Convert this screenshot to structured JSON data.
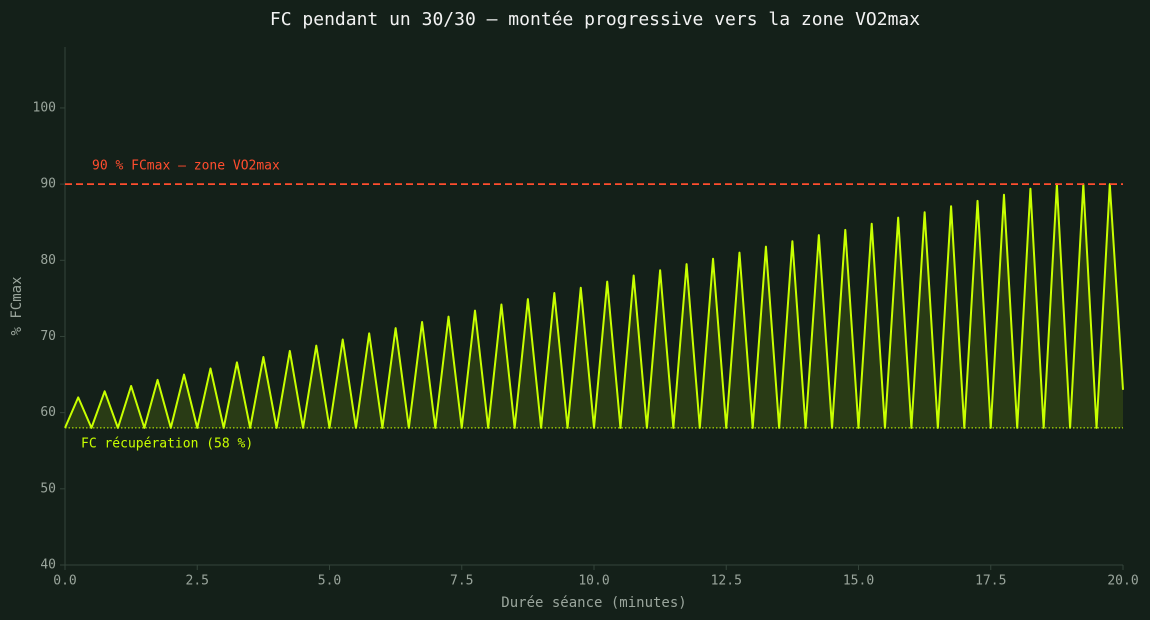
{
  "chart_data": {
    "type": "line",
    "title": "FC pendant un 30/30 — montée progressive vers la zone VO2max",
    "x_label": "Durée séance (minutes)",
    "y_label": "% FCmax",
    "x": [
      0,
      0.25,
      0.5,
      0.75,
      1,
      1.25,
      1.5,
      1.75,
      2,
      2.25,
      2.5,
      2.75,
      3,
      3.25,
      3.5,
      3.75,
      4,
      4.25,
      4.5,
      4.75,
      5,
      5.25,
      5.5,
      5.75,
      6,
      6.25,
      6.5,
      6.75,
      7,
      7.25,
      7.5,
      7.75,
      8,
      8.25,
      8.5,
      8.75,
      9,
      9.25,
      9.5,
      9.75,
      10,
      10.25,
      10.5,
      10.75,
      11,
      11.25,
      11.5,
      11.75,
      12,
      12.25,
      12.5,
      12.75,
      13,
      13.25,
      13.5,
      13.75,
      14,
      14.25,
      14.5,
      14.75,
      15,
      15.25,
      15.5,
      15.75,
      16,
      16.25,
      16.5,
      16.75,
      17,
      17.25,
      17.5,
      17.75,
      18,
      18.25,
      18.5,
      18.75,
      19,
      19.25,
      19.5,
      19.75,
      20
    ],
    "series": [
      {
        "name": "FC",
        "color": "#c8ff00",
        "values": [
          58,
          62.0,
          58,
          62.8,
          58,
          63.5,
          58,
          64.3,
          58,
          65.0,
          58,
          65.8,
          58,
          66.6,
          58,
          67.3,
          58,
          68.1,
          58,
          68.8,
          58,
          69.6,
          58,
          70.4,
          58,
          71.1,
          58,
          71.9,
          58,
          72.6,
          58,
          73.4,
          58,
          74.2,
          58,
          74.9,
          58,
          75.7,
          58,
          76.4,
          58,
          77.2,
          58,
          78.0,
          58,
          78.7,
          58,
          79.5,
          58,
          80.2,
          58,
          81.0,
          58,
          81.8,
          58,
          82.5,
          58,
          83.3,
          58,
          84.0,
          58,
          84.8,
          58,
          85.6,
          58,
          86.3,
          58,
          87.1,
          58,
          87.8,
          58,
          88.6,
          58,
          89.4,
          58,
          90.0,
          58,
          90.0,
          58,
          90.0,
          63
        ]
      }
    ],
    "hlines": [
      {
        "value": 90,
        "color": "#ff4d2e",
        "style": "dashed",
        "label": "90 % FCmax — zone VO2max"
      },
      {
        "value": 58,
        "color": "#c8ff00",
        "style": "dotted",
        "label": "FC récupération (58 %)"
      }
    ],
    "xlim": [
      0,
      20
    ],
    "xticks": [
      {
        "value": 0,
        "label": "0.0"
      },
      2.5,
      {
        "value": 5,
        "label": "5.0"
      },
      7.5,
      {
        "value": 10,
        "label": "10.0"
      },
      12.5,
      {
        "value": 15,
        "label": "15.0"
      },
      17.5,
      {
        "value": 20,
        "label": "20.0"
      }
    ],
    "ylim": [
      40,
      108
    ],
    "yticks": [
      40,
      50,
      60,
      70,
      80,
      90,
      100
    ]
  }
}
